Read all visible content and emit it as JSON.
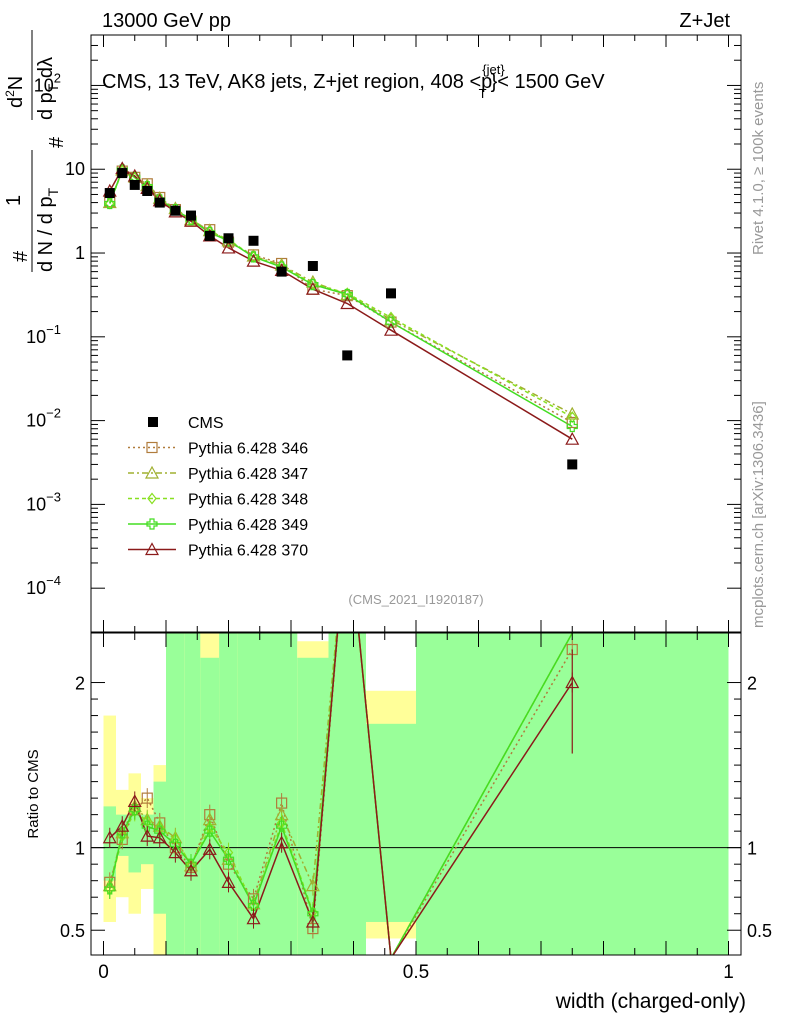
{
  "header": {
    "left": "13000 GeV pp",
    "right": "Z+Jet"
  },
  "plot_title": "CMS, 13 TeV, AK8 jets, Z+jet region, 408 <p",
  "plot_title_sup": "{jet}",
  "plot_title_sub": "T",
  "plot_title_tail": "}< 1500 GeV",
  "side_labels": {
    "top": "Rivet 4.1.0, ≥ 100k events",
    "bottom": "mcplots.cern.ch [arXiv:1306.3436]"
  },
  "analysis_id": "(CMS_2021_I1920187)",
  "ylabel_main": {
    "num": "1",
    "den": "d N / d p",
    "den_sub": "T",
    "hash": "#",
    "num2": "d",
    "num2_sup": "2",
    "num2_tail": "N",
    "den2": "d p",
    "den2_sub": "T",
    "den2_tail": " dλ"
  },
  "ylabel_ratio": "Ratio to CMS",
  "xlabel": "width (charged-only)",
  "colors": {
    "data": "#000000",
    "s346": "#b07c3c",
    "s347": "#a0b030",
    "s348": "#88e020",
    "s349": "#44dd22",
    "s370": "#8b1a1a",
    "band_green": "#99ff99",
    "band_yellow": "#ffff99"
  },
  "chart_data": {
    "type": "scatter",
    "yscale": "log",
    "xlim": [
      -0.02,
      1.02
    ],
    "ylim": [
      3e-05,
      400
    ],
    "ratio_ylim": [
      0.35,
      2.3
    ],
    "x_ticks": [
      {
        "v": 0,
        "label": "0"
      },
      {
        "v": 0.5,
        "label": "0.5"
      },
      {
        "v": 1,
        "label": "1"
      }
    ],
    "y_ticks": [
      {
        "v": 100,
        "base": "10",
        "exp": "2"
      },
      {
        "v": 10,
        "base": "10",
        "exp": ""
      },
      {
        "v": 1,
        "base": "1",
        "exp": ""
      },
      {
        "v": 0.1,
        "base": "10",
        "exp": "−1"
      },
      {
        "v": 0.01,
        "base": "10",
        "exp": "−2"
      },
      {
        "v": 0.001,
        "base": "10",
        "exp": "−3"
      },
      {
        "v": 0.0001,
        "base": "10",
        "exp": "−4"
      }
    ],
    "ratio_ticks": [
      {
        "v": 0.5,
        "label": "0.5"
      },
      {
        "v": 1,
        "label": "1"
      },
      {
        "v": 2,
        "label": "2"
      }
    ],
    "x": [
      0.01,
      0.03,
      0.05,
      0.07,
      0.09,
      0.115,
      0.14,
      0.17,
      0.2,
      0.24,
      0.285,
      0.335,
      0.39,
      0.46,
      0.75
    ],
    "data": {
      "name": "CMS",
      "values": [
        5.2,
        9.0,
        6.5,
        5.5,
        4.0,
        3.2,
        2.8,
        1.6,
        1.5,
        1.4,
        0.6,
        0.7,
        0.06,
        0.33,
        0.003
      ]
    },
    "series": [
      {
        "name": "Pythia 6.428 346",
        "key": "s346",
        "marker": "square",
        "dash": "2,3",
        "values": [
          4.1,
          9.5,
          8.0,
          6.7,
          4.6,
          3.3,
          2.4,
          1.9,
          1.35,
          0.95,
          0.75,
          0.37,
          0.31,
          0.15,
          0.0095
        ],
        "ratio": [
          0.79,
          1.05,
          1.23,
          1.3,
          1.15,
          1.0,
          0.88,
          1.2,
          0.9,
          0.69,
          1.27,
          0.51,
          3.0,
          0.33,
          2.2
        ]
      },
      {
        "name": "Pythia 6.428 347",
        "key": "s347",
        "marker": "triangle",
        "dash": "6,3,2,3",
        "values": [
          4.0,
          9.8,
          8.1,
          6.4,
          4.5,
          3.4,
          2.5,
          1.85,
          1.4,
          0.92,
          0.72,
          0.45,
          0.32,
          0.16,
          0.012
        ],
        "ratio": [
          0.77,
          1.09,
          1.25,
          1.17,
          1.13,
          1.06,
          0.89,
          1.17,
          0.93,
          0.66,
          1.2,
          0.77,
          3.0,
          0.33,
          2.3
        ]
      },
      {
        "name": "Pythia 6.428 348",
        "key": "s348",
        "marker": "diamond",
        "dash": "4,3",
        "values": [
          3.9,
          9.6,
          7.9,
          6.3,
          4.4,
          3.3,
          2.5,
          1.8,
          1.45,
          0.9,
          0.7,
          0.43,
          0.33,
          0.17,
          0.011
        ],
        "ratio": [
          0.75,
          1.07,
          1.22,
          1.16,
          1.12,
          1.05,
          0.9,
          1.12,
          0.97,
          0.65,
          1.15,
          0.61,
          3.0,
          0.33,
          2.3
        ]
      },
      {
        "name": "Pythia 6.428 349",
        "key": "s349",
        "marker": "cross",
        "dash": "",
        "values": [
          3.9,
          9.8,
          8.0,
          6.2,
          4.3,
          3.3,
          2.5,
          1.75,
          1.4,
          0.9,
          0.68,
          0.42,
          0.32,
          0.15,
          0.0085
        ],
        "ratio": [
          0.75,
          1.09,
          1.23,
          1.13,
          1.1,
          1.02,
          0.9,
          1.1,
          0.93,
          0.65,
          1.13,
          0.6,
          3.0,
          0.33,
          2.3
        ]
      },
      {
        "name": "Pythia 6.428 370",
        "key": "s370",
        "marker": "triangle",
        "dash": "",
        "values": [
          5.5,
          10.2,
          8.3,
          5.9,
          4.2,
          3.1,
          2.4,
          1.6,
          1.15,
          0.8,
          0.62,
          0.37,
          0.25,
          0.12,
          0.006
        ],
        "ratio": [
          1.06,
          1.13,
          1.28,
          1.07,
          1.06,
          0.97,
          0.86,
          0.99,
          0.79,
          0.57,
          1.03,
          0.55,
          3.0,
          0.33,
          2.0
        ]
      }
    ]
  }
}
